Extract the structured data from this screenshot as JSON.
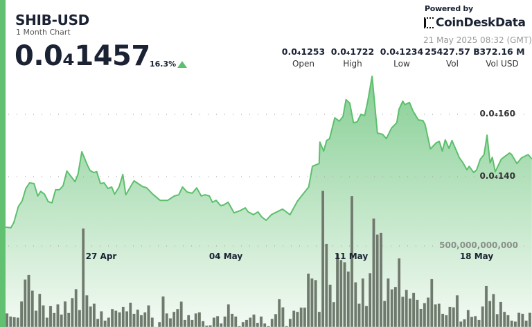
{
  "header": {
    "title": "SHIB-USD",
    "subtitle": "1 Month Chart",
    "price": "0.0₄1457",
    "change": "16.3%",
    "change_direction": "up",
    "powered_by": "Powered by",
    "brand": "CoinDeskData",
    "timestamp": "21 May 2025 08:32 (GMT)"
  },
  "stats": [
    {
      "value": "0.0₄1253",
      "label": "Open"
    },
    {
      "value": "0.0₄1722",
      "label": "High"
    },
    {
      "value": "0.0₄1234",
      "label": "Low"
    },
    {
      "value": "25427.57 B",
      "label": "Vol"
    },
    {
      "value": "372.16 M",
      "label": "Vol USD"
    }
  ],
  "colors": {
    "accent": "#62c071",
    "line": "#5cbf6c",
    "area_top": "#86cf94",
    "bars": "#6d7a6c",
    "up": "#5cbf6c"
  },
  "chart_data": {
    "type": "area",
    "grid": true,
    "price_ticks": [
      {
        "value": 1.6e-05,
        "label": "0.0₄160"
      },
      {
        "value": 1.4e-05,
        "label": "0.0₄140"
      }
    ],
    "volume_ticks": [
      {
        "value": 500000000000,
        "label": "500,000,000,000"
      }
    ],
    "x_ticks": [
      {
        "date": "2025-04-27",
        "label": "27 Apr"
      },
      {
        "date": "2025-05-04",
        "label": "04 May"
      },
      {
        "date": "2025-05-11",
        "label": "11 May"
      },
      {
        "date": "2025-05-18",
        "label": "18 May"
      }
    ],
    "price": [
      [
        "2025-04-21 17:00",
        1.238e-05
      ],
      [
        "2025-04-22 00:00",
        1.236e-05
      ],
      [
        "2025-04-22 04:00",
        1.253e-05
      ],
      [
        "2025-04-22 10:00",
        1.304e-05
      ],
      [
        "2025-04-22 15:00",
        1.322e-05
      ],
      [
        "2025-04-22 20:00",
        1.362e-05
      ],
      [
        "2025-04-23 01:00",
        1.38e-05
      ],
      [
        "2025-04-23 07:00",
        1.378e-05
      ],
      [
        "2025-04-23 12:00",
        1.338e-05
      ],
      [
        "2025-04-23 16:00",
        1.353e-05
      ],
      [
        "2025-04-23 21:00",
        1.344e-05
      ],
      [
        "2025-04-24 02:00",
        1.32e-05
      ],
      [
        "2025-04-24 07:00",
        1.316e-05
      ],
      [
        "2025-04-24 12:00",
        1.358e-05
      ],
      [
        "2025-04-24 17:00",
        1.358e-05
      ],
      [
        "2025-04-24 22:00",
        1.371e-05
      ],
      [
        "2025-04-25 03:00",
        1.418e-05
      ],
      [
        "2025-04-25 14:00",
        1.384e-05
      ],
      [
        "2025-04-25 18:00",
        1.409e-05
      ],
      [
        "2025-04-25 23:00",
        1.48e-05
      ],
      [
        "2025-04-26 06:00",
        1.44e-05
      ],
      [
        "2025-04-26 10:00",
        1.42e-05
      ],
      [
        "2025-04-26 15:00",
        1.413e-05
      ],
      [
        "2025-04-26 19:00",
        1.416e-05
      ],
      [
        "2025-04-27 00:00",
        1.378e-05
      ],
      [
        "2025-04-27 05:00",
        1.38e-05
      ],
      [
        "2025-04-27 10:00",
        1.362e-05
      ],
      [
        "2025-04-27 15:00",
        1.367e-05
      ],
      [
        "2025-04-27 19:00",
        1.344e-05
      ],
      [
        "2025-04-28 01:00",
        1.367e-05
      ],
      [
        "2025-04-28 06:00",
        1.407e-05
      ],
      [
        "2025-04-28 10:00",
        1.342e-05
      ],
      [
        "2025-04-28 21:00",
        1.387e-05
      ],
      [
        "2025-04-29 08:00",
        1.369e-05
      ],
      [
        "2025-04-29 14:00",
        1.364e-05
      ],
      [
        "2025-04-29 22:00",
        1.344e-05
      ],
      [
        "2025-04-30 08:00",
        1.324e-05
      ],
      [
        "2025-04-30 18:00",
        1.324e-05
      ],
      [
        "2025-05-01 03:00",
        1.338e-05
      ],
      [
        "2025-05-01 09:00",
        1.342e-05
      ],
      [
        "2025-05-01 14:00",
        1.367e-05
      ],
      [
        "2025-05-01 20:00",
        1.351e-05
      ],
      [
        "2025-05-02 03:00",
        1.347e-05
      ],
      [
        "2025-05-02 09:00",
        1.364e-05
      ],
      [
        "2025-05-02 15:00",
        1.338e-05
      ],
      [
        "2025-05-02 20:00",
        1.342e-05
      ],
      [
        "2025-05-03 02:00",
        1.338e-05
      ],
      [
        "2025-05-03 06:00",
        1.318e-05
      ],
      [
        "2025-05-03 11:00",
        1.324e-05
      ],
      [
        "2025-05-03 17:00",
        1.307e-05
      ],
      [
        "2025-05-03 21:00",
        1.309e-05
      ],
      [
        "2025-05-04 03:00",
        1.318e-05
      ],
      [
        "2025-05-04 11:00",
        1.284e-05
      ],
      [
        "2025-05-04 19:00",
        1.291e-05
      ],
      [
        "2025-05-05 02:00",
        1.3e-05
      ],
      [
        "2025-05-05 06:00",
        1.287e-05
      ],
      [
        "2025-05-05 13:00",
        1.278e-05
      ],
      [
        "2025-05-05 19:00",
        1.287e-05
      ],
      [
        "2025-05-06 00:00",
        1.271e-05
      ],
      [
        "2025-05-06 06:00",
        1.26e-05
      ],
      [
        "2025-05-06 13:00",
        1.278e-05
      ],
      [
        "2025-05-06 18:00",
        1.284e-05
      ],
      [
        "2025-05-07 04:00",
        1.296e-05
      ],
      [
        "2025-05-07 14:00",
        1.278e-05
      ],
      [
        "2025-05-08 00:00",
        1.322e-05
      ],
      [
        "2025-05-08 15:00",
        1.367e-05
      ],
      [
        "2025-05-08 20:00",
        1.433e-05
      ],
      [
        "2025-05-09 05:00",
        1.442e-05
      ],
      [
        "2025-05-09 06:00",
        1.511e-05
      ],
      [
        "2025-05-09 11:00",
        1.482e-05
      ],
      [
        "2025-05-09 15:00",
        1.516e-05
      ],
      [
        "2025-05-09 19:00",
        1.522e-05
      ],
      [
        "2025-05-10 02:00",
        1.589e-05
      ],
      [
        "2025-05-10 08:00",
        1.578e-05
      ],
      [
        "2025-05-10 13:00",
        1.593e-05
      ],
      [
        "2025-05-10 17:00",
        1.647e-05
      ],
      [
        "2025-05-10 22:00",
        1.636e-05
      ],
      [
        "2025-05-11 03:00",
        1.573e-05
      ],
      [
        "2025-05-11 08:00",
        1.576e-05
      ],
      [
        "2025-05-11 13:00",
        1.6e-05
      ],
      [
        "2025-05-11 18:00",
        1.596e-05
      ],
      [
        "2025-05-11 22:00",
        1.64e-05
      ],
      [
        "2025-05-12 04:00",
        1.722e-05
      ],
      [
        "2025-05-12 11:00",
        1.54e-05
      ],
      [
        "2025-05-12 18:00",
        1.536e-05
      ],
      [
        "2025-05-12 23:00",
        1.522e-05
      ],
      [
        "2025-05-13 06:00",
        1.556e-05
      ],
      [
        "2025-05-13 13:00",
        1.573e-05
      ],
      [
        "2025-05-13 16:00",
        1.616e-05
      ],
      [
        "2025-05-13 21:00",
        1.642e-05
      ],
      [
        "2025-05-14 00:00",
        1.631e-05
      ],
      [
        "2025-05-14 06:00",
        1.638e-05
      ],
      [
        "2025-05-14 11:00",
        1.609e-05
      ],
      [
        "2025-05-14 18:00",
        1.582e-05
      ],
      [
        "2025-05-15 00:00",
        1.58e-05
      ],
      [
        "2025-05-15 03:00",
        1.567e-05
      ],
      [
        "2025-05-15 10:00",
        1.489e-05
      ],
      [
        "2025-05-15 18:00",
        1.509e-05
      ],
      [
        "2025-05-15 22:00",
        1.513e-05
      ],
      [
        "2025-05-16 02:00",
        1.482e-05
      ],
      [
        "2025-05-16 06:00",
        1.518e-05
      ],
      [
        "2025-05-16 11:00",
        1.491e-05
      ],
      [
        "2025-05-16 15:00",
        1.516e-05
      ],
      [
        "2025-05-17 01:00",
        1.46e-05
      ],
      [
        "2025-05-17 05:00",
        1.447e-05
      ],
      [
        "2025-05-17 11:00",
        1.422e-05
      ],
      [
        "2025-05-17 14:00",
        1.433e-05
      ],
      [
        "2025-05-17 20:00",
        1.413e-05
      ],
      [
        "2025-05-18 00:00",
        1.422e-05
      ],
      [
        "2025-05-18 05:00",
        1.456e-05
      ],
      [
        "2025-05-18 10:00",
        1.471e-05
      ],
      [
        "2025-05-18 14:00",
        1.533e-05
      ],
      [
        "2025-05-18 18:00",
        1.444e-05
      ],
      [
        "2025-05-18 21:00",
        1.462e-05
      ],
      [
        "2025-05-19 01:00",
        1.416e-05
      ],
      [
        "2025-05-19 09:00",
        1.456e-05
      ],
      [
        "2025-05-19 20:00",
        1.476e-05
      ],
      [
        "2025-05-19 23:00",
        1.471e-05
      ],
      [
        "2025-05-20 06:00",
        1.442e-05
      ],
      [
        "2025-05-20 12:00",
        1.46e-05
      ],
      [
        "2025-05-20 21:00",
        1.471e-05
      ],
      [
        "2025-05-21 02:00",
        1.457e-05
      ]
    ],
    "volume": [
      84000000000.0,
      65000000000.0,
      61000000000.0,
      58000000000.0,
      158000000000.0,
      293000000000.0,
      322000000000.0,
      225000000000.0,
      101000000000.0,
      205000000000.0,
      134000000000.0,
      58000000000.0,
      129000000000.0,
      87000000000.0,
      140000000000.0,
      77000000000.0,
      158000000000.0,
      87000000000.0,
      179000000000.0,
      234000000000.0,
      105000000000.0,
      609000000000.0,
      196000000000.0,
      127000000000.0,
      144000000000.0,
      51000000000.0,
      97000000000.0,
      40000000000.0,
      58000000000.0,
      111000000000.0,
      101000000000.0,
      91000000000.0,
      125000000000.0,
      97000000000.0,
      151000000000.0,
      82000000000.0,
      108000000000.0,
      73000000000.0,
      91000000000.0,
      134000000000.0,
      58000000000.0,
      1000000000.0,
      30000000000.0,
      189000000000.0,
      84000000000.0,
      54000000000.0,
      94000000000.0,
      111000000000.0,
      157000000000.0,
      44000000000.0,
      73000000000.0,
      44000000000.0,
      84000000000.0,
      91000000000.0,
      37000000000.0,
      9000000000.0,
      11000000000.0,
      58000000000.0,
      68000000000.0,
      23000000000.0,
      65000000000.0,
      140000000000.0,
      82000000000.0,
      65000000000.0,
      6000000000.0,
      30000000000.0,
      44000000000.0,
      58000000000.0,
      77000000000.0,
      26000000000.0,
      65000000000.0,
      23000000000.0,
      6000000000.0,
      51000000000.0,
      80000000000.0,
      172000000000.0,
      122000000000.0,
      6000000000.0,
      51000000000.0,
      101000000000.0,
      94000000000.0,
      120000000000.0,
      120000000000.0,
      330000000000.0,
      300000000000.0,
      290000000000.0,
      94000000000.0,
      841000000000.0,
      514000000000.0,
      262000000000.0,
      154000000000.0,
      450000000000.0,
      414000000000.0,
      400000000000.0,
      343000000000.0,
      808000000000.0,
      276000000000.0,
      144000000000.0,
      300000000000.0,
      130000000000.0,
      333000000000.0,
      670000000000.0,
      571000000000.0,
      582000000000.0,
      162000000000.0,
      300000000000.0,
      233000000000.0,
      248000000000.0,
      424000000000.0,
      187000000000.0,
      229000000000.0,
      176000000000.0,
      211000000000.0,
      168000000000.0,
      112000000000.0,
      148000000000.0,
      182000000000.0,
      296000000000.0,
      140000000000.0,
      144000000000.0,
      82000000000.0,
      73000000000.0,
      125000000000.0,
      122000000000.0,
      196000000000.0,
      34000000000.0,
      48000000000.0,
      105000000000.0,
      63000000000.0,
      68000000000.0,
      44000000000.0,
      127000000000.0,
      253000000000.0,
      161000000000.0,
      204000000000.0,
      80000000000.0,
      155000000000.0,
      94000000000.0,
      73000000000.0,
      40000000000.0,
      34000000000.0,
      88000000000.0,
      82000000000.0,
      40000000000.0,
      88000000000.0
    ]
  }
}
